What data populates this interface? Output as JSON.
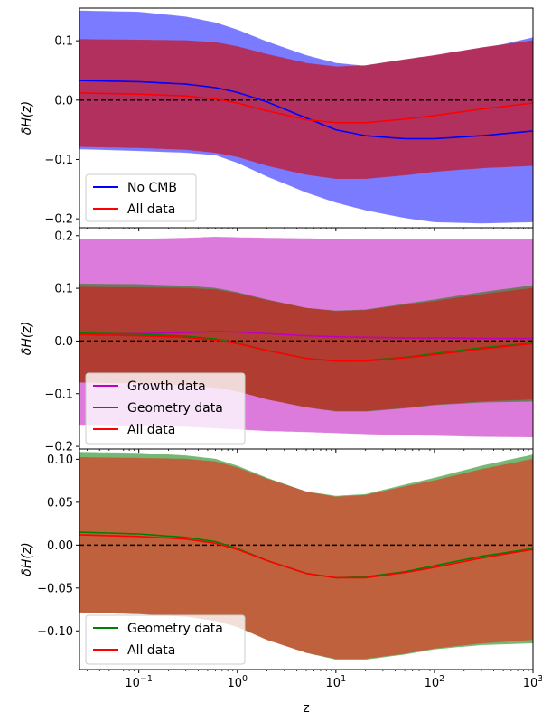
{
  "chart_data": [
    {
      "type": "area",
      "xscale": "log",
      "xlim": [
        0.025,
        1000
      ],
      "ylim": [
        -0.215,
        0.155
      ],
      "yticks": [
        -0.2,
        -0.1,
        0.0,
        0.1
      ],
      "ytick_labels": [
        "−0.2",
        "−0.1",
        "0.0",
        "0.1"
      ],
      "ylabel": "δH(z)",
      "xlabel": "",
      "reference_line": {
        "y": 0,
        "style": "dashed",
        "color": "#000000"
      },
      "legend": {
        "placement": "lower-left",
        "entries": [
          "No CMB",
          "All data"
        ]
      },
      "series": [
        {
          "name": "No CMB",
          "color": "#0000ff",
          "band_color": "#7b7bff",
          "x": [
            0.025,
            0.1,
            0.3,
            0.6,
            1.0,
            2.0,
            5.0,
            10,
            20,
            50,
            100,
            300,
            1000
          ],
          "mean": [
            0.033,
            0.031,
            0.027,
            0.021,
            0.013,
            -0.003,
            -0.03,
            -0.05,
            -0.06,
            -0.065,
            -0.065,
            -0.06,
            -0.052
          ],
          "upper": [
            0.15,
            0.148,
            0.14,
            0.13,
            0.118,
            0.098,
            0.075,
            0.062,
            0.057,
            0.06,
            0.068,
            0.085,
            0.105
          ],
          "lower": [
            -0.082,
            -0.085,
            -0.088,
            -0.092,
            -0.105,
            -0.128,
            -0.155,
            -0.172,
            -0.185,
            -0.198,
            -0.205,
            -0.207,
            -0.205
          ]
        },
        {
          "name": "All data",
          "color": "#ff0000",
          "band_color": "#b2305e",
          "x": [
            0.025,
            0.1,
            0.3,
            0.6,
            1.0,
            2.0,
            5.0,
            10,
            20,
            50,
            100,
            300,
            1000
          ],
          "mean": [
            0.012,
            0.01,
            0.007,
            0.002,
            -0.005,
            -0.018,
            -0.033,
            -0.038,
            -0.038,
            -0.032,
            -0.026,
            -0.015,
            -0.005
          ],
          "upper": [
            0.102,
            0.101,
            0.1,
            0.097,
            0.09,
            0.077,
            0.062,
            0.056,
            0.058,
            0.068,
            0.075,
            0.088,
            0.1
          ],
          "lower": [
            -0.078,
            -0.08,
            -0.083,
            -0.088,
            -0.095,
            -0.11,
            -0.125,
            -0.132,
            -0.132,
            -0.126,
            -0.12,
            -0.114,
            -0.11
          ]
        }
      ]
    },
    {
      "type": "area",
      "xscale": "log",
      "xlim": [
        0.025,
        1000
      ],
      "ylim": [
        -0.205,
        0.215
      ],
      "yticks": [
        -0.2,
        -0.1,
        0.0,
        0.1,
        0.2
      ],
      "ytick_labels": [
        "−0.2",
        "−0.1",
        "0.0",
        "0.1",
        "0.2"
      ],
      "ylabel": "δH(z)",
      "xlabel": "",
      "reference_line": {
        "y": 0,
        "style": "dashed",
        "color": "#000000"
      },
      "legend": {
        "placement": "lower-left",
        "entries": [
          "Growth data",
          "Geometry data",
          "All data"
        ]
      },
      "series": [
        {
          "name": "Growth data",
          "color": "#bf00bf",
          "band_color": "#dc7bdc",
          "x": [
            0.025,
            0.1,
            0.3,
            0.6,
            1.0,
            2.0,
            5.0,
            10,
            20,
            50,
            100,
            300,
            1000
          ],
          "mean": [
            0.013,
            0.014,
            0.016,
            0.018,
            0.017,
            0.014,
            0.01,
            0.008,
            0.007,
            0.006,
            0.006,
            0.005,
            0.005
          ],
          "upper": [
            0.192,
            0.193,
            0.195,
            0.197,
            0.196,
            0.195,
            0.194,
            0.193,
            0.192,
            0.192,
            0.192,
            0.192,
            0.192
          ],
          "lower": [
            -0.158,
            -0.16,
            -0.162,
            -0.165,
            -0.167,
            -0.17,
            -0.172,
            -0.174,
            -0.176,
            -0.178,
            -0.179,
            -0.181,
            -0.182
          ]
        },
        {
          "name": "Geometry data",
          "color": "#008000",
          "band_color": "#6e7a5e",
          "x": [
            0.025,
            0.1,
            0.3,
            0.6,
            1.0,
            2.0,
            5.0,
            10,
            20,
            50,
            100,
            300,
            1000
          ],
          "mean": [
            0.015,
            0.013,
            0.009,
            0.004,
            -0.004,
            -0.018,
            -0.033,
            -0.038,
            -0.037,
            -0.031,
            -0.024,
            -0.013,
            -0.004
          ],
          "upper": [
            0.108,
            0.107,
            0.104,
            0.1,
            0.092,
            0.078,
            0.062,
            0.057,
            0.059,
            0.07,
            0.078,
            0.092,
            0.105
          ],
          "lower": [
            -0.072,
            -0.075,
            -0.079,
            -0.085,
            -0.093,
            -0.108,
            -0.125,
            -0.133,
            -0.133,
            -0.127,
            -0.121,
            -0.116,
            -0.114
          ]
        },
        {
          "name": "All data",
          "color": "#ff0000",
          "band_color": "#b03c32",
          "x": [
            0.025,
            0.1,
            0.3,
            0.6,
            1.0,
            2.0,
            5.0,
            10,
            20,
            50,
            100,
            300,
            1000
          ],
          "mean": [
            0.012,
            0.01,
            0.007,
            0.002,
            -0.005,
            -0.018,
            -0.033,
            -0.038,
            -0.038,
            -0.032,
            -0.026,
            -0.015,
            -0.005
          ],
          "upper": [
            0.102,
            0.101,
            0.1,
            0.097,
            0.09,
            0.077,
            0.062,
            0.056,
            0.058,
            0.068,
            0.075,
            0.088,
            0.1
          ],
          "lower": [
            -0.078,
            -0.08,
            -0.083,
            -0.088,
            -0.095,
            -0.11,
            -0.125,
            -0.132,
            -0.132,
            -0.126,
            -0.12,
            -0.114,
            -0.11
          ]
        }
      ]
    },
    {
      "type": "area",
      "xscale": "log",
      "xlim": [
        0.025,
        1000
      ],
      "ylim": [
        -0.145,
        0.112
      ],
      "yticks": [
        -0.1,
        -0.05,
        0.0,
        0.05,
        0.1
      ],
      "ytick_labels": [
        "−0.10",
        "−0.05",
        "0.00",
        "0.05",
        "0.10"
      ],
      "ylabel": "δH(z)",
      "xlabel": "z",
      "xtick_labels": [
        {
          "base": "10",
          "exp": "−1"
        },
        {
          "base": "10",
          "exp": "0"
        },
        {
          "base": "10",
          "exp": "1"
        },
        {
          "base": "10",
          "exp": "2"
        },
        {
          "base": "10",
          "exp": "3"
        }
      ],
      "reference_line": {
        "y": 0,
        "style": "dashed",
        "color": "#000000"
      },
      "legend": {
        "placement": "lower-left",
        "entries": [
          "Geometry data",
          "All data"
        ]
      },
      "series": [
        {
          "name": "Geometry data",
          "color": "#008000",
          "band_color": "#74b874",
          "x": [
            0.025,
            0.1,
            0.3,
            0.6,
            1.0,
            2.0,
            5.0,
            10,
            20,
            50,
            100,
            300,
            1000
          ],
          "mean": [
            0.015,
            0.013,
            0.009,
            0.004,
            -0.004,
            -0.018,
            -0.033,
            -0.038,
            -0.037,
            -0.031,
            -0.024,
            -0.013,
            -0.004
          ],
          "upper": [
            0.108,
            0.107,
            0.104,
            0.1,
            0.092,
            0.078,
            0.062,
            0.057,
            0.059,
            0.07,
            0.078,
            0.092,
            0.105
          ],
          "lower": [
            -0.072,
            -0.075,
            -0.079,
            -0.085,
            -0.093,
            -0.108,
            -0.125,
            -0.133,
            -0.133,
            -0.127,
            -0.121,
            -0.116,
            -0.114
          ]
        },
        {
          "name": "All data",
          "color": "#ff0000",
          "band_color": "#bf613d",
          "x": [
            0.025,
            0.1,
            0.3,
            0.6,
            1.0,
            2.0,
            5.0,
            10,
            20,
            50,
            100,
            300,
            1000
          ],
          "mean": [
            0.012,
            0.01,
            0.007,
            0.002,
            -0.005,
            -0.018,
            -0.033,
            -0.038,
            -0.038,
            -0.032,
            -0.026,
            -0.015,
            -0.005
          ],
          "upper": [
            0.102,
            0.101,
            0.1,
            0.097,
            0.09,
            0.077,
            0.062,
            0.056,
            0.058,
            0.068,
            0.075,
            0.088,
            0.1
          ],
          "lower": [
            -0.078,
            -0.08,
            -0.083,
            -0.088,
            -0.095,
            -0.11,
            -0.125,
            -0.132,
            -0.132,
            -0.126,
            -0.12,
            -0.114,
            -0.11
          ]
        }
      ]
    }
  ]
}
